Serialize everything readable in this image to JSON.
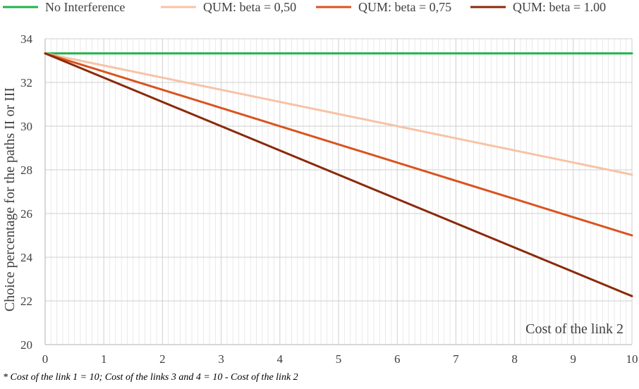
{
  "chart_data": {
    "type": "line",
    "title": "",
    "xlabel": "Cost of the link 2",
    "ylabel": "Choice percentage for the paths II or III",
    "xlim": [
      0,
      10
    ],
    "ylim": [
      20,
      34
    ],
    "x_ticks": [
      "0",
      "1",
      "2",
      "3",
      "4",
      "5",
      "6",
      "7",
      "8",
      "9",
      "10"
    ],
    "y_ticks": [
      "20",
      "22",
      "24",
      "26",
      "28",
      "30",
      "32",
      "34"
    ],
    "grid": {
      "major": true,
      "minor_vertical_step": 0.1
    },
    "legend_position": "top",
    "series": [
      {
        "name": "No Interference",
        "color": "#1fb34a",
        "x": [
          0,
          10
        ],
        "y": [
          33.33,
          33.33
        ]
      },
      {
        "name": "QUM: beta = 0,50",
        "color": "#f7c3a6",
        "x": [
          0,
          10
        ],
        "y": [
          33.33,
          27.78
        ]
      },
      {
        "name": "QUM: beta = 0,75",
        "color": "#d9531e",
        "x": [
          0,
          10
        ],
        "y": [
          33.33,
          25.0
        ]
      },
      {
        "name": "QUM: beta = 1.00",
        "color": "#8a2a0a",
        "x": [
          0,
          10
        ],
        "y": [
          33.33,
          22.22
        ]
      }
    ],
    "footnote": "* Cost of the link 1 = 10;   Cost of the links 3 and 4 = 10 - Cost of the link 2"
  }
}
